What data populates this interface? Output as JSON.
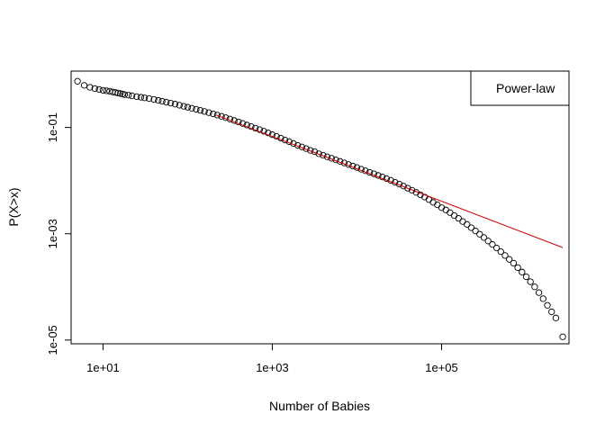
{
  "chart_data": {
    "type": "scatter",
    "title": "",
    "xlabel": "Number of Babies",
    "ylabel": "P(X>x)",
    "x_scale": "log",
    "y_scale": "log",
    "xlim": [
      4.2,
      3200000
    ],
    "ylim": [
      8.5e-06,
      1.15
    ],
    "x_ticks": [
      {
        "value": 10,
        "label": "1e+01"
      },
      {
        "value": 1000,
        "label": "1e+03"
      },
      {
        "value": 100000,
        "label": "1e+05"
      }
    ],
    "y_ticks": [
      {
        "value": 0.1,
        "label": "1e-01"
      },
      {
        "value": 0.001,
        "label": "1e-03"
      },
      {
        "value": 1e-05,
        "label": "1e-05"
      }
    ],
    "grid": false,
    "legend": {
      "position": "top-right",
      "entries": [
        "Power-law"
      ]
    },
    "series": [
      {
        "name": "",
        "kind": "points",
        "marker": "open-circle",
        "color": "#000000",
        "points": [
          [
            5,
            0.74
          ],
          [
            6,
            0.62
          ],
          [
            7,
            0.57
          ],
          [
            8,
            0.54
          ],
          [
            9,
            0.52
          ],
          [
            10,
            0.5
          ],
          [
            11,
            0.49
          ],
          [
            12,
            0.48
          ],
          [
            13,
            0.465
          ],
          [
            14,
            0.455
          ],
          [
            15,
            0.445
          ],
          [
            16,
            0.435
          ],
          [
            17,
            0.425
          ],
          [
            18,
            0.415
          ],
          [
            20,
            0.405
          ],
          [
            22,
            0.395
          ],
          [
            25,
            0.38
          ],
          [
            28,
            0.37
          ],
          [
            31,
            0.36
          ],
          [
            35,
            0.35
          ],
          [
            40,
            0.336
          ],
          [
            45,
            0.323
          ],
          [
            50,
            0.311
          ],
          [
            56,
            0.299
          ],
          [
            63,
            0.287
          ],
          [
            71,
            0.275
          ],
          [
            80,
            0.262
          ],
          [
            90,
            0.25
          ],
          [
            100,
            0.24
          ],
          [
            112,
            0.23
          ],
          [
            126,
            0.22
          ],
          [
            141,
            0.21
          ],
          [
            158,
            0.2
          ],
          [
            178,
            0.19
          ],
          [
            200,
            0.18
          ],
          [
            224,
            0.171
          ],
          [
            251,
            0.162
          ],
          [
            282,
            0.153
          ],
          [
            316,
            0.144
          ],
          [
            355,
            0.135
          ],
          [
            398,
            0.127
          ],
          [
            447,
            0.119
          ],
          [
            501,
            0.111
          ],
          [
            562,
            0.104
          ],
          [
            631,
            0.097
          ],
          [
            708,
            0.091
          ],
          [
            794,
            0.085
          ],
          [
            891,
            0.079
          ],
          [
            1000,
            0.073
          ],
          [
            1122,
            0.068
          ],
          [
            1259,
            0.063
          ],
          [
            1413,
            0.058
          ],
          [
            1585,
            0.054
          ],
          [
            1778,
            0.05
          ],
          [
            1995,
            0.046
          ],
          [
            2239,
            0.043
          ],
          [
            2512,
            0.04
          ],
          [
            2818,
            0.037
          ],
          [
            3162,
            0.035
          ],
          [
            3548,
            0.032
          ],
          [
            3981,
            0.03
          ],
          [
            4467,
            0.028
          ],
          [
            5012,
            0.0263
          ],
          [
            5623,
            0.0246
          ],
          [
            6310,
            0.023
          ],
          [
            7079,
            0.0215
          ],
          [
            7943,
            0.0201
          ],
          [
            8913,
            0.0188
          ],
          [
            10000,
            0.0176
          ],
          [
            11220,
            0.0164
          ],
          [
            12590,
            0.0153
          ],
          [
            14130,
            0.0143
          ],
          [
            15850,
            0.0134
          ],
          [
            17780,
            0.0125
          ],
          [
            19950,
            0.0117
          ],
          [
            22390,
            0.0109
          ],
          [
            25120,
            0.0101
          ],
          [
            28180,
            0.0093
          ],
          [
            31620,
            0.0086
          ],
          [
            35480,
            0.0079
          ],
          [
            39810,
            0.0072
          ],
          [
            44670,
            0.0066
          ],
          [
            50120,
            0.006
          ],
          [
            56230,
            0.0054
          ],
          [
            63100,
            0.0049
          ],
          [
            70790,
            0.0044
          ],
          [
            79430,
            0.0039
          ],
          [
            89130,
            0.0035
          ],
          [
            100000,
            0.0031
          ],
          [
            112200,
            0.0028
          ],
          [
            125900,
            0.0025
          ],
          [
            141300,
            0.0022
          ],
          [
            158500,
            0.00195
          ],
          [
            177800,
            0.0017
          ],
          [
            199500,
            0.0015
          ],
          [
            223900,
            0.0013
          ],
          [
            251200,
            0.00113
          ],
          [
            281800,
            0.00098
          ],
          [
            316200,
            0.00085
          ],
          [
            354800,
            0.00073
          ],
          [
            398100,
            0.00063
          ],
          [
            446700,
            0.00054
          ],
          [
            501200,
            0.00046
          ],
          [
            562300,
            0.00039
          ],
          [
            631000,
            0.00033
          ],
          [
            707900,
            0.00028
          ],
          [
            794300,
            0.00023
          ],
          [
            891300,
            0.00019
          ],
          [
            1000000,
            0.000155
          ],
          [
            1122000,
            0.000125
          ],
          [
            1259000,
            0.0001
          ],
          [
            1413000,
            7.8e-05
          ],
          [
            1585000,
            6e-05
          ],
          [
            1778000,
            4.5e-05
          ],
          [
            1995000,
            3.4e-05
          ],
          [
            2239000,
            2.6e-05
          ],
          [
            2700000,
            1.15e-05
          ]
        ]
      },
      {
        "name": "Power-law",
        "kind": "line",
        "color": "#cc0000",
        "points": [
          [
            220,
            0.17
          ],
          [
            2700000,
            0.00055
          ]
        ]
      }
    ]
  }
}
